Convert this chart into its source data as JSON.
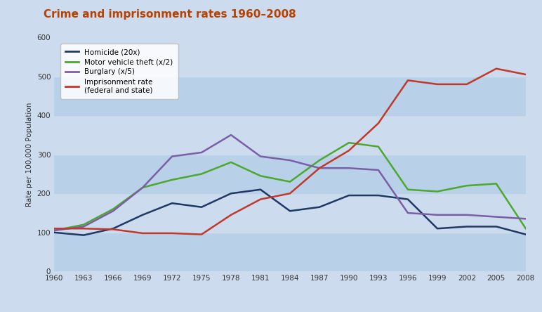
{
  "title": "Crime and imprisonment rates 1960–2008",
  "title_color": "#b84000",
  "ylabel": "Rate per 100,000 Population",
  "years": [
    1960,
    1963,
    1966,
    1969,
    1972,
    1975,
    1978,
    1981,
    1984,
    1987,
    1990,
    1993,
    1996,
    1999,
    2002,
    2005,
    2008
  ],
  "homicide": [
    100,
    93,
    110,
    145,
    175,
    165,
    200,
    210,
    155,
    165,
    195,
    195,
    185,
    110,
    115,
    115,
    95
  ],
  "motor_vehicle": [
    105,
    120,
    160,
    215,
    235,
    250,
    280,
    245,
    230,
    285,
    330,
    320,
    210,
    205,
    220,
    225,
    110
  ],
  "burglary": [
    105,
    115,
    155,
    215,
    295,
    305,
    350,
    295,
    285,
    265,
    265,
    260,
    150,
    145,
    145,
    140,
    135
  ],
  "imprisonment": [
    110,
    110,
    108,
    98,
    98,
    95,
    145,
    185,
    200,
    265,
    310,
    380,
    490,
    480,
    480,
    520,
    505
  ],
  "homicide_color": "#1f3864",
  "motor_vehicle_color": "#4da82e",
  "burglary_color": "#7b5ea7",
  "imprisonment_color": "#c0392b",
  "fig_bg": "#ccdcee",
  "band_colors": [
    "#b8d0e8",
    "#ccdcee"
  ],
  "band_edges": [
    0,
    100,
    200,
    300,
    400,
    500,
    600
  ],
  "ylim": [
    0,
    600
  ],
  "xlim": [
    1960,
    2008
  ],
  "yticks": [
    0,
    100,
    200,
    300,
    400,
    500,
    600
  ],
  "xtick_labels": [
    "1960",
    "1963",
    "1966",
    "1969",
    "1972",
    "1975",
    "1978",
    "1981",
    "1984",
    "1987",
    "1990",
    "1993",
    "1996",
    "1999",
    "2002",
    "2005",
    "2008"
  ],
  "legend_labels": [
    "Homicide (20x)",
    "Motor vehicle theft (x/2)",
    "Burglary (x/5)",
    "Imprisonment rate\n(federal and state)"
  ]
}
